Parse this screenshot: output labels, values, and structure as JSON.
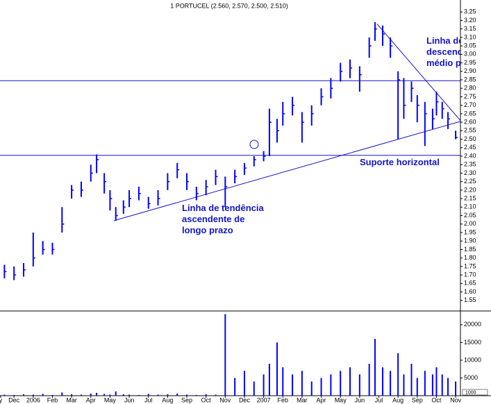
{
  "chart_data": {
    "type": "ohlc",
    "title": "1 PORTUCEL (2.560, 2.570, 2.500, 2.510)",
    "color": "#0000ff",
    "xlim": [
      0.27,
      24.25
    ],
    "xticks": [
      {
        "value": 0.3,
        "label": "y"
      },
      {
        "value": 1,
        "label": "Dec"
      },
      {
        "value": 2,
        "label": "2006"
      },
      {
        "value": 3,
        "label": "Feb"
      },
      {
        "value": 4,
        "label": "Mar"
      },
      {
        "value": 5,
        "label": "Apr"
      },
      {
        "value": 6,
        "label": "May"
      },
      {
        "value": 7,
        "label": "Jun"
      },
      {
        "value": 8,
        "label": "Jul"
      },
      {
        "value": 9,
        "label": "Aug"
      },
      {
        "value": 10,
        "label": "Sep"
      },
      {
        "value": 11,
        "label": "Oct"
      },
      {
        "value": 12,
        "label": "Nov"
      },
      {
        "value": 13,
        "label": "Dec"
      },
      {
        "value": 14,
        "label": "2007"
      },
      {
        "value": 15,
        "label": "Feb"
      },
      {
        "value": 16,
        "label": "Mar"
      },
      {
        "value": 17,
        "label": "Apr"
      },
      {
        "value": 18,
        "label": "May"
      },
      {
        "value": 19,
        "label": "Jun"
      },
      {
        "value": 20,
        "label": "Jul"
      },
      {
        "value": 21,
        "label": "Aug"
      },
      {
        "value": 22,
        "label": "Sep"
      },
      {
        "value": 23,
        "label": "Oct"
      },
      {
        "value": 24,
        "label": "Nov"
      }
    ],
    "ylim": [
      1.5,
      3.3
    ],
    "yticks": [
      1.55,
      {
        "value": 1.6,
        "label": "1.60"
      },
      1.65,
      {
        "value": 1.7,
        "label": "1.70"
      },
      1.75,
      {
        "value": 1.8,
        "label": "1.80"
      },
      1.85,
      {
        "value": 1.9,
        "label": "1.90"
      },
      1.95,
      {
        "value": 2,
        "label": "2.00"
      },
      2.05,
      {
        "value": 2.1,
        "label": "2.10"
      },
      2.15,
      {
        "value": 2.2,
        "label": "2.20"
      },
      2.25,
      {
        "value": 2.3,
        "label": "2.30"
      },
      2.35,
      {
        "value": 2.4,
        "label": "2.40"
      },
      2.45,
      {
        "value": 2.5,
        "label": "2.50"
      },
      2.55,
      {
        "value": 2.6,
        "label": "2.60"
      },
      2.65,
      {
        "value": 2.7,
        "label": "2.70"
      },
      2.75,
      {
        "value": 2.8,
        "label": "2.80"
      },
      2.85,
      {
        "value": 2.9,
        "label": "2.90"
      },
      2.95,
      {
        "value": 3,
        "label": "3.00"
      },
      3.05,
      {
        "value": 3.1,
        "label": "3.10"
      },
      3.15,
      {
        "value": 3.2,
        "label": "3.20"
      },
      3.25
    ],
    "y2lim": [
      0,
      23500
    ],
    "y2ticks": [
      5000,
      10000,
      15000,
      20000
    ],
    "volume_unit_label": "1000",
    "x": [
      0.5,
      1.0,
      1.5,
      2.0,
      2.5,
      3.0,
      3.5,
      4.0,
      4.5,
      5.0,
      5.3,
      5.7,
      6.0,
      6.3,
      6.7,
      7.0,
      7.5,
      8.0,
      8.5,
      9.0,
      9.5,
      10.0,
      10.5,
      11.0,
      11.5,
      12.0,
      12.5,
      13.0,
      13.5,
      14.0,
      14.3,
      14.7,
      15.0,
      15.5,
      16.0,
      16.5,
      17.0,
      17.5,
      18.0,
      18.5,
      19.0,
      19.5,
      19.8,
      20.2,
      20.6,
      21.0,
      21.3,
      21.7,
      22.0,
      22.4,
      22.8,
      23.0,
      23.3,
      23.6,
      24.0
    ],
    "high": [
      1.76,
      1.75,
      1.77,
      1.95,
      1.9,
      1.89,
      2.1,
      2.23,
      2.25,
      2.35,
      2.41,
      2.3,
      2.2,
      2.1,
      2.14,
      2.2,
      2.22,
      2.16,
      2.2,
      2.3,
      2.36,
      2.3,
      2.22,
      2.26,
      2.32,
      2.28,
      2.32,
      2.36,
      2.4,
      2.43,
      2.68,
      2.62,
      2.72,
      2.75,
      2.66,
      2.7,
      2.8,
      2.86,
      2.95,
      2.97,
      2.93,
      3.1,
      3.19,
      3.17,
      3.1,
      2.9,
      2.86,
      2.84,
      2.76,
      2.72,
      2.68,
      2.78,
      2.72,
      2.66,
      2.55
    ],
    "low": [
      1.68,
      1.67,
      1.69,
      1.75,
      1.82,
      1.82,
      1.95,
      2.15,
      2.16,
      2.25,
      2.3,
      2.18,
      2.08,
      2.02,
      2.06,
      2.1,
      2.14,
      2.09,
      2.11,
      2.2,
      2.27,
      2.2,
      2.14,
      2.17,
      2.23,
      2.1,
      2.24,
      2.29,
      2.34,
      2.37,
      2.4,
      2.48,
      2.58,
      2.64,
      2.48,
      2.58,
      2.7,
      2.74,
      2.84,
      2.86,
      2.78,
      2.98,
      3.08,
      3.05,
      2.98,
      2.5,
      2.62,
      2.72,
      2.6,
      2.46,
      2.56,
      2.64,
      2.62,
      2.56,
      2.5
    ],
    "close": [
      1.72,
      1.7,
      1.73,
      1.8,
      1.85,
      1.85,
      2.0,
      2.2,
      2.2,
      2.3,
      2.38,
      2.25,
      2.15,
      2.05,
      2.1,
      2.15,
      2.18,
      2.12,
      2.15,
      2.25,
      2.32,
      2.25,
      2.18,
      2.22,
      2.28,
      2.22,
      2.28,
      2.33,
      2.38,
      2.4,
      2.6,
      2.55,
      2.65,
      2.7,
      2.6,
      2.65,
      2.75,
      2.8,
      2.9,
      2.92,
      2.88,
      3.05,
      3.15,
      3.12,
      3.05,
      2.85,
      2.7,
      2.8,
      2.7,
      2.65,
      2.62,
      2.72,
      2.68,
      2.62,
      2.51
    ],
    "volume": [
      300,
      200,
      400,
      300,
      500,
      200,
      900,
      400,
      300,
      600,
      800,
      500,
      300,
      1200,
      400,
      300,
      200,
      500,
      300,
      400,
      600,
      300,
      200,
      400,
      300,
      23000,
      5000,
      7000,
      4000,
      6000,
      9000,
      15000,
      8000,
      6000,
      7000,
      4000,
      5000,
      6000,
      7000,
      8000,
      6000,
      9000,
      16000,
      8000,
      7000,
      12000,
      6000,
      9000,
      5000,
      7000,
      6000,
      8000,
      6000,
      5000,
      4000
    ],
    "hlines": [
      2.845,
      2.405
    ],
    "trendlines": [
      {
        "x": [
          6.2,
          24.25
        ],
        "y": [
          2.02,
          2.605
        ]
      },
      {
        "x": [
          19.9,
          24.25
        ],
        "y": [
          3.18,
          2.61
        ]
      }
    ],
    "annotations": {
      "trend_up": [
        "Linha de tendência",
        "ascendente de",
        "longo prazo"
      ],
      "support": "Suporte horizontal",
      "trend_down": [
        "Linha de",
        "descend",
        "médio p"
      ]
    }
  }
}
